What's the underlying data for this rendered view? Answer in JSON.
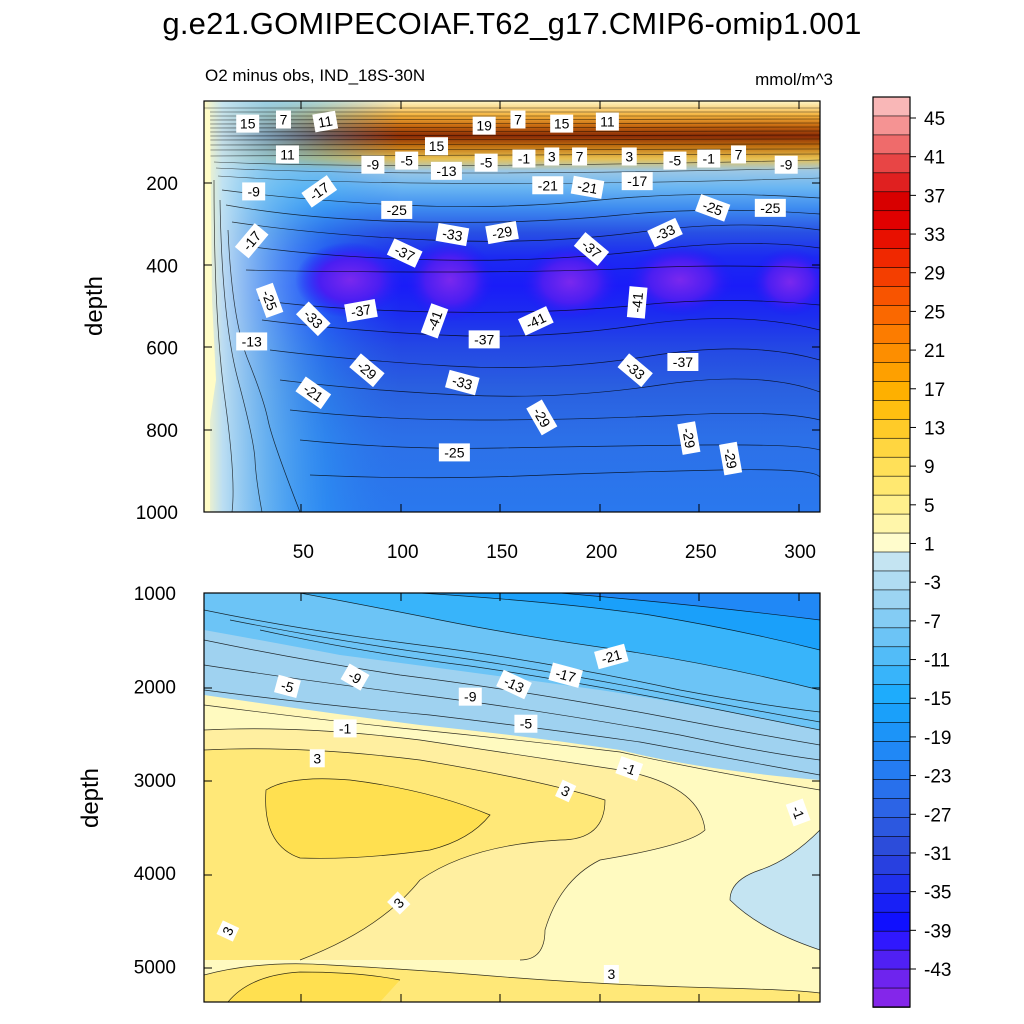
{
  "page": {
    "title": "g.e21.GOMIPECOIAF.T62_g17.CMIP6-omip1.001",
    "subtitle_left": "O2 minus obs, IND_18S-30N",
    "subtitle_right": "mmol/m^3"
  },
  "chart_data": [
    {
      "type": "contour",
      "panel": "upper",
      "ylabel": "depth",
      "xlabel": "",
      "xlim": [
        0,
        310
      ],
      "ylim": [
        1000,
        0
      ],
      "x_ticks": [
        "50",
        "100",
        "150",
        "200",
        "250",
        "300"
      ],
      "y_ticks": [
        "200",
        "400",
        "600",
        "800",
        "1000"
      ],
      "contour_labels": [
        {
          "text": "15",
          "x": 22,
          "y": 55,
          "angle": 0
        },
        {
          "text": "7",
          "x": 40,
          "y": 45,
          "angle": 0
        },
        {
          "text": "11",
          "x": 61,
          "y": 50,
          "angle": -10
        },
        {
          "text": "19",
          "x": 141,
          "y": 60,
          "angle": 0
        },
        {
          "text": "7",
          "x": 158,
          "y": 45,
          "angle": 0
        },
        {
          "text": "15",
          "x": 180,
          "y": 55,
          "angle": 0
        },
        {
          "text": "11",
          "x": 203,
          "y": 50,
          "angle": 0
        },
        {
          "text": "15",
          "x": 117,
          "y": 110,
          "angle": 0
        },
        {
          "text": "11",
          "x": 42,
          "y": 130,
          "angle": 0
        },
        {
          "text": "-9",
          "x": 85,
          "y": 155,
          "angle": 0
        },
        {
          "text": "-5",
          "x": 102,
          "y": 145,
          "angle": 0
        },
        {
          "text": "-13",
          "x": 122,
          "y": 170,
          "angle": 0
        },
        {
          "text": "-5",
          "x": 142,
          "y": 150,
          "angle": 0
        },
        {
          "text": "-1",
          "x": 161,
          "y": 140,
          "angle": 0
        },
        {
          "text": "3",
          "x": 175,
          "y": 135,
          "angle": 0
        },
        {
          "text": "7",
          "x": 189,
          "y": 135,
          "angle": 0
        },
        {
          "text": "3",
          "x": 214,
          "y": 135,
          "angle": 0
        },
        {
          "text": "-5",
          "x": 237,
          "y": 145,
          "angle": 0
        },
        {
          "text": "-1",
          "x": 254,
          "y": 140,
          "angle": 0
        },
        {
          "text": "7",
          "x": 269,
          "y": 130,
          "angle": 0
        },
        {
          "text": "-9",
          "x": 293,
          "y": 155,
          "angle": 0
        },
        {
          "text": "-9",
          "x": 25,
          "y": 220,
          "angle": 0
        },
        {
          "text": "-17",
          "x": 58,
          "y": 220,
          "angle": -35
        },
        {
          "text": "-21",
          "x": 173,
          "y": 205,
          "angle": 0
        },
        {
          "text": "-21",
          "x": 193,
          "y": 210,
          "angle": 10
        },
        {
          "text": "-17",
          "x": 218,
          "y": 195,
          "angle": 0
        },
        {
          "text": "-25",
          "x": 97,
          "y": 265,
          "angle": 0
        },
        {
          "text": "-25",
          "x": 256,
          "y": 260,
          "angle": 20
        },
        {
          "text": "-25",
          "x": 285,
          "y": 260,
          "angle": 0
        },
        {
          "text": "-17",
          "x": 24,
          "y": 340,
          "angle": -50
        },
        {
          "text": "-33",
          "x": 125,
          "y": 325,
          "angle": 10
        },
        {
          "text": "-29",
          "x": 150,
          "y": 320,
          "angle": -10
        },
        {
          "text": "-33",
          "x": 232,
          "y": 320,
          "angle": -25
        },
        {
          "text": "-37",
          "x": 101,
          "y": 370,
          "angle": 25
        },
        {
          "text": "-37",
          "x": 195,
          "y": 360,
          "angle": 40
        },
        {
          "text": "-25",
          "x": 33,
          "y": 485,
          "angle": 70
        },
        {
          "text": "-33",
          "x": 55,
          "y": 530,
          "angle": 45
        },
        {
          "text": "-37",
          "x": 79,
          "y": 510,
          "angle": -10
        },
        {
          "text": "-41",
          "x": 116,
          "y": 535,
          "angle": -70
        },
        {
          "text": "-41",
          "x": 167,
          "y": 535,
          "angle": -25
        },
        {
          "text": "-41",
          "x": 218,
          "y": 490,
          "angle": -85
        },
        {
          "text": "-37",
          "x": 141,
          "y": 580,
          "angle": 0
        },
        {
          "text": "-37",
          "x": 241,
          "y": 635,
          "angle": 0
        },
        {
          "text": "-13",
          "x": 24,
          "y": 585,
          "angle": 0
        },
        {
          "text": "-29",
          "x": 82,
          "y": 655,
          "angle": 40
        },
        {
          "text": "-33",
          "x": 130,
          "y": 685,
          "angle": 15
        },
        {
          "text": "-33",
          "x": 217,
          "y": 655,
          "angle": 40
        },
        {
          "text": "-21",
          "x": 55,
          "y": 710,
          "angle": 35
        },
        {
          "text": "-29",
          "x": 170,
          "y": 770,
          "angle": 60
        },
        {
          "text": "-29",
          "x": 244,
          "y": 820,
          "angle": 80
        },
        {
          "text": "-29",
          "x": 265,
          "y": 870,
          "angle": 80
        },
        {
          "text": "-25",
          "x": 126,
          "y": 855,
          "angle": 0
        }
      ]
    },
    {
      "type": "contour",
      "panel": "lower",
      "ylabel": "depth",
      "xlabel": "",
      "xlim": [
        0,
        310
      ],
      "ylim": [
        5380,
        1000
      ],
      "x_ticks": [],
      "y_ticks": [
        "1000",
        "2000",
        "3000",
        "4000",
        "5000"
      ],
      "contour_labels": [
        {
          "text": "-9",
          "x": 76,
          "y": 1900,
          "angle": 30
        },
        {
          "text": "-5",
          "x": 42,
          "y": 2000,
          "angle": 15
        },
        {
          "text": "-9",
          "x": 134,
          "y": 2110,
          "angle": 0
        },
        {
          "text": "-13",
          "x": 156,
          "y": 1980,
          "angle": 25
        },
        {
          "text": "-17",
          "x": 182,
          "y": 1880,
          "angle": 15
        },
        {
          "text": "-21",
          "x": 205,
          "y": 1680,
          "angle": -15
        },
        {
          "text": "-5",
          "x": 162,
          "y": 2400,
          "angle": 0
        },
        {
          "text": "-1",
          "x": 71,
          "y": 2450,
          "angle": 0
        },
        {
          "text": "3",
          "x": 57,
          "y": 2770,
          "angle": 0
        },
        {
          "text": "-1",
          "x": 214,
          "y": 2880,
          "angle": 20
        },
        {
          "text": "3",
          "x": 182,
          "y": 3120,
          "angle": 25
        },
        {
          "text": "-1",
          "x": 299,
          "y": 3350,
          "angle": 70
        },
        {
          "text": "3",
          "x": 98,
          "y": 4320,
          "angle": -45
        },
        {
          "text": "3",
          "x": 12,
          "y": 4620,
          "angle": -65
        },
        {
          "text": "3",
          "x": 205,
          "y": 5080,
          "angle": 0
        }
      ]
    },
    {
      "type": "colorbar",
      "units": "mmol/m^3",
      "levels": [
        -45,
        -43,
        -41,
        -39,
        -37,
        -35,
        -33,
        -31,
        -29,
        -27,
        -25,
        -23,
        -21,
        -19,
        -17,
        -15,
        -13,
        -11,
        -9,
        -7,
        -5,
        -3,
        -1,
        1,
        3,
        5,
        7,
        9,
        11,
        13,
        15,
        17,
        19,
        21,
        23,
        25,
        27,
        29,
        31,
        33,
        35,
        37,
        39,
        41,
        43,
        45
      ],
      "tick_labels": [
        "45",
        "41",
        "37",
        "33",
        "29",
        "25",
        "21",
        "17",
        "13",
        "9",
        "5",
        "1",
        "-3",
        "-7",
        "-11",
        "-15",
        "-19",
        "-23",
        "-27",
        "-31",
        "-35",
        "-39",
        "-43"
      ],
      "colors_top_to_bottom": [
        "#F9B7B7",
        "#F59393",
        "#EF6B6B",
        "#E84545",
        "#E02020",
        "#D80000",
        "#E00000",
        "#E81000",
        "#F02800",
        "#F43E00",
        "#F85400",
        "#FA6800",
        "#FC7C00",
        "#FD8E00",
        "#FEA000",
        "#FEB000",
        "#FFBF10",
        "#FFCB28",
        "#FFD640",
        "#FFE058",
        "#FFE870",
        "#FFF08C",
        "#FFF6AA",
        "#FFFCCC",
        "#C4E4F2",
        "#B0DCF2",
        "#9CD4F2",
        "#84CCF4",
        "#6CC4F6",
        "#52BCF8",
        "#38B4FA",
        "#1EACFC",
        "#1AA0FA",
        "#1C94F8",
        "#2088F6",
        "#247CF2",
        "#2870EC",
        "#2C64E6",
        "#2C58E0",
        "#2C4CDA",
        "#2840E0",
        "#2030EC",
        "#1820F6",
        "#1010FE",
        "#3018FE",
        "#5020F4",
        "#6E24EE",
        "#8426EA"
      ]
    }
  ]
}
